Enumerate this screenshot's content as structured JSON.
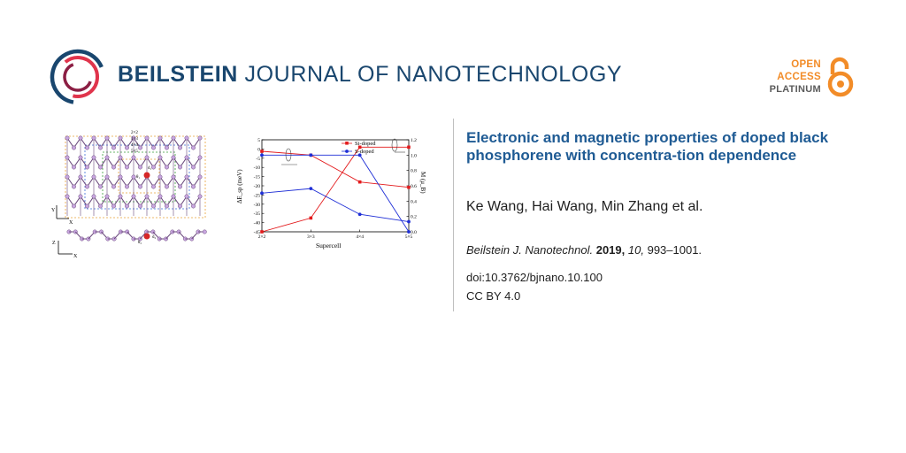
{
  "journal": {
    "name_bold": "BEILSTEIN",
    "name_light": "JOURNAL OF NANOTECHNOLOGY"
  },
  "badge": {
    "line1": "OPEN",
    "line2": "ACCESS",
    "line3": "PLATINUM",
    "color_orange": "#f28c28",
    "color_gray": "#5b5b5b"
  },
  "article": {
    "title": "Electronic and magnetic properties of doped black phosphorene with concentra-tion dependence",
    "authors": "Ke Wang, Hai Wang, Min Zhang et al.",
    "citation": {
      "journal": "Beilstein J. Nanotechnol.",
      "year": "2019,",
      "volume": "10,",
      "pages": "993–1001."
    },
    "doi": "doi:10.3762/bjnano.10.100",
    "license": "CC BY 4.0"
  },
  "structure_figure": {
    "labels": {
      "cell2": "2×2",
      "cell3": "3×3",
      "cell4": "4×4",
      "cell5": "5×5",
      "d1": "d₁",
      "theta1": "θ₁",
      "d2": "d₂",
      "theta2": "θ₂",
      "axis_y": "Y",
      "axis_x": "X",
      "axis_z": "Z",
      "axis_x2": "X"
    },
    "colors": {
      "atom": "#c9a7e0",
      "bond": "#6b4a7d",
      "dopant": "#d62728",
      "dash_orange": "#e8a33a",
      "dash_blue": "#3a6fd8",
      "dash_green": "#3a9d3a"
    }
  },
  "chart_data": {
    "type": "line",
    "categories": [
      "2×2",
      "3×3",
      "4×4",
      "5×5"
    ],
    "xlabel": "Supercell",
    "ylabel_left": "ΔE_sp (meV)",
    "ylabel_right": "M (μ_B)",
    "ylim_left": [
      -45,
      5
    ],
    "yticks_left": [
      "5",
      "0",
      "-5",
      "-10",
      "-15",
      "-20",
      "-25",
      "-30",
      "-35",
      "-40",
      "-45"
    ],
    "ylim_right": [
      0.0,
      1.2
    ],
    "yticks_right": [
      "1.2",
      "1.0",
      "0.8",
      "0.6",
      "0.4",
      "0.2",
      "0.0"
    ],
    "legend": "top-right",
    "series": [
      {
        "name": "Si-doped",
        "axis": "left",
        "color": "#e31a1c",
        "marker": "square",
        "values": [
          -45,
          -37.5,
          1,
          1
        ]
      },
      {
        "name": "S-doped",
        "axis": "left",
        "color": "#1f2fd6",
        "marker": "circle",
        "values": [
          -24,
          -21.5,
          -35.5,
          -39.5
        ]
      },
      {
        "name": "Si-doped",
        "axis": "right",
        "color": "#e31a1c",
        "marker": "square",
        "values": [
          1.05,
          1.0,
          0.65,
          0.58
        ]
      },
      {
        "name": "S-doped",
        "axis": "right",
        "color": "#1f2fd6",
        "marker": "circle",
        "values": [
          1.0,
          1.0,
          1.0,
          0.0
        ]
      }
    ]
  }
}
